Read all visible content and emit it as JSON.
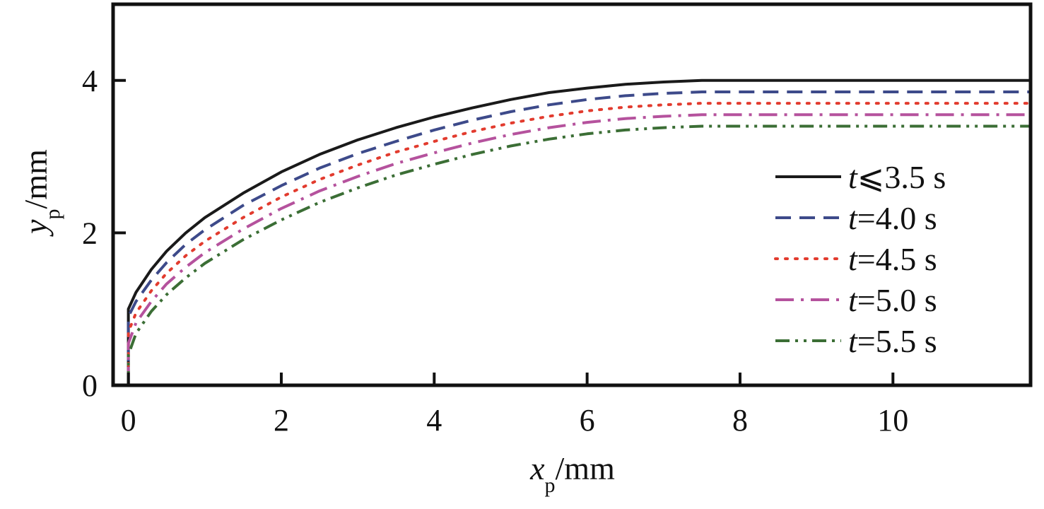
{
  "chart_data": {
    "type": "line",
    "xlabel": {
      "main": "x",
      "sub": "p",
      "unit": "/mm"
    },
    "ylabel": {
      "main": "y",
      "sub": "p",
      "unit": "/mm"
    },
    "xlim": [
      -0.2,
      11.8
    ],
    "ylim": [
      0,
      5
    ],
    "xticks": [
      0,
      2,
      4,
      6,
      8,
      10
    ],
    "yticks": [
      0,
      2,
      4
    ],
    "grid": false,
    "legend_position": "right",
    "series": [
      {
        "name": "t⩽3.5 s",
        "color": "#1a1a1a",
        "dash": "solid",
        "points": [
          [
            0,
            0
          ],
          [
            0,
            1.0
          ],
          [
            0.1,
            1.22
          ],
          [
            0.3,
            1.52
          ],
          [
            0.5,
            1.76
          ],
          [
            0.75,
            2.0
          ],
          [
            1.0,
            2.2
          ],
          [
            1.5,
            2.52
          ],
          [
            2.0,
            2.8
          ],
          [
            2.5,
            3.03
          ],
          [
            3.0,
            3.22
          ],
          [
            3.5,
            3.38
          ],
          [
            4.0,
            3.52
          ],
          [
            4.5,
            3.64
          ],
          [
            5.0,
            3.75
          ],
          [
            5.5,
            3.84
          ],
          [
            6.0,
            3.9
          ],
          [
            6.5,
            3.95
          ],
          [
            7.0,
            3.98
          ],
          [
            7.5,
            4.0
          ],
          [
            11.8,
            4.0
          ]
        ]
      },
      {
        "name": "t=4.0 s",
        "color": "#3d4a8a",
        "dash": "dashed",
        "points": [
          [
            0,
            0
          ],
          [
            0,
            0.9
          ],
          [
            0.1,
            1.1
          ],
          [
            0.3,
            1.38
          ],
          [
            0.5,
            1.61
          ],
          [
            0.75,
            1.85
          ],
          [
            1.0,
            2.04
          ],
          [
            1.5,
            2.36
          ],
          [
            2.0,
            2.62
          ],
          [
            2.5,
            2.85
          ],
          [
            3.0,
            3.04
          ],
          [
            3.5,
            3.2
          ],
          [
            4.0,
            3.35
          ],
          [
            4.5,
            3.48
          ],
          [
            5.0,
            3.59
          ],
          [
            5.5,
            3.68
          ],
          [
            6.0,
            3.75
          ],
          [
            6.5,
            3.8
          ],
          [
            7.0,
            3.83
          ],
          [
            7.5,
            3.85
          ],
          [
            11.8,
            3.85
          ]
        ]
      },
      {
        "name": "t=4.5 s",
        "color": "#e23b2e",
        "dash": "dotted",
        "points": [
          [
            0,
            0
          ],
          [
            0,
            0.7
          ],
          [
            0.1,
            0.95
          ],
          [
            0.3,
            1.24
          ],
          [
            0.5,
            1.47
          ],
          [
            0.75,
            1.7
          ],
          [
            1.0,
            1.89
          ],
          [
            1.5,
            2.2
          ],
          [
            2.0,
            2.47
          ],
          [
            2.5,
            2.7
          ],
          [
            3.0,
            2.89
          ],
          [
            3.5,
            3.06
          ],
          [
            4.0,
            3.2
          ],
          [
            4.5,
            3.33
          ],
          [
            5.0,
            3.44
          ],
          [
            5.5,
            3.53
          ],
          [
            6.0,
            3.6
          ],
          [
            6.5,
            3.65
          ],
          [
            7.0,
            3.68
          ],
          [
            7.5,
            3.7
          ],
          [
            11.8,
            3.7
          ]
        ]
      },
      {
        "name": "t=5.0 s",
        "color": "#b5529d",
        "dash": "dashdot",
        "points": [
          [
            0,
            0
          ],
          [
            0,
            0.55
          ],
          [
            0.1,
            0.82
          ],
          [
            0.3,
            1.1
          ],
          [
            0.5,
            1.33
          ],
          [
            0.75,
            1.55
          ],
          [
            1.0,
            1.74
          ],
          [
            1.5,
            2.05
          ],
          [
            2.0,
            2.32
          ],
          [
            2.5,
            2.55
          ],
          [
            3.0,
            2.74
          ],
          [
            3.5,
            2.91
          ],
          [
            4.0,
            3.05
          ],
          [
            4.5,
            3.18
          ],
          [
            5.0,
            3.29
          ],
          [
            5.5,
            3.38
          ],
          [
            6.0,
            3.45
          ],
          [
            6.5,
            3.5
          ],
          [
            7.0,
            3.53
          ],
          [
            7.5,
            3.55
          ],
          [
            11.8,
            3.55
          ]
        ]
      },
      {
        "name": "t=5.5 s",
        "color": "#3b6e35",
        "dash": "dashdotdot",
        "points": [
          [
            0,
            0
          ],
          [
            0,
            0.4
          ],
          [
            0.1,
            0.68
          ],
          [
            0.3,
            0.97
          ],
          [
            0.5,
            1.19
          ],
          [
            0.75,
            1.41
          ],
          [
            1.0,
            1.6
          ],
          [
            1.5,
            1.91
          ],
          [
            2.0,
            2.17
          ],
          [
            2.5,
            2.4
          ],
          [
            3.0,
            2.59
          ],
          [
            3.5,
            2.76
          ],
          [
            4.0,
            2.9
          ],
          [
            4.5,
            3.03
          ],
          [
            5.0,
            3.14
          ],
          [
            5.5,
            3.23
          ],
          [
            6.0,
            3.3
          ],
          [
            6.5,
            3.35
          ],
          [
            7.0,
            3.38
          ],
          [
            7.5,
            3.4
          ],
          [
            11.8,
            3.4
          ]
        ]
      }
    ]
  }
}
